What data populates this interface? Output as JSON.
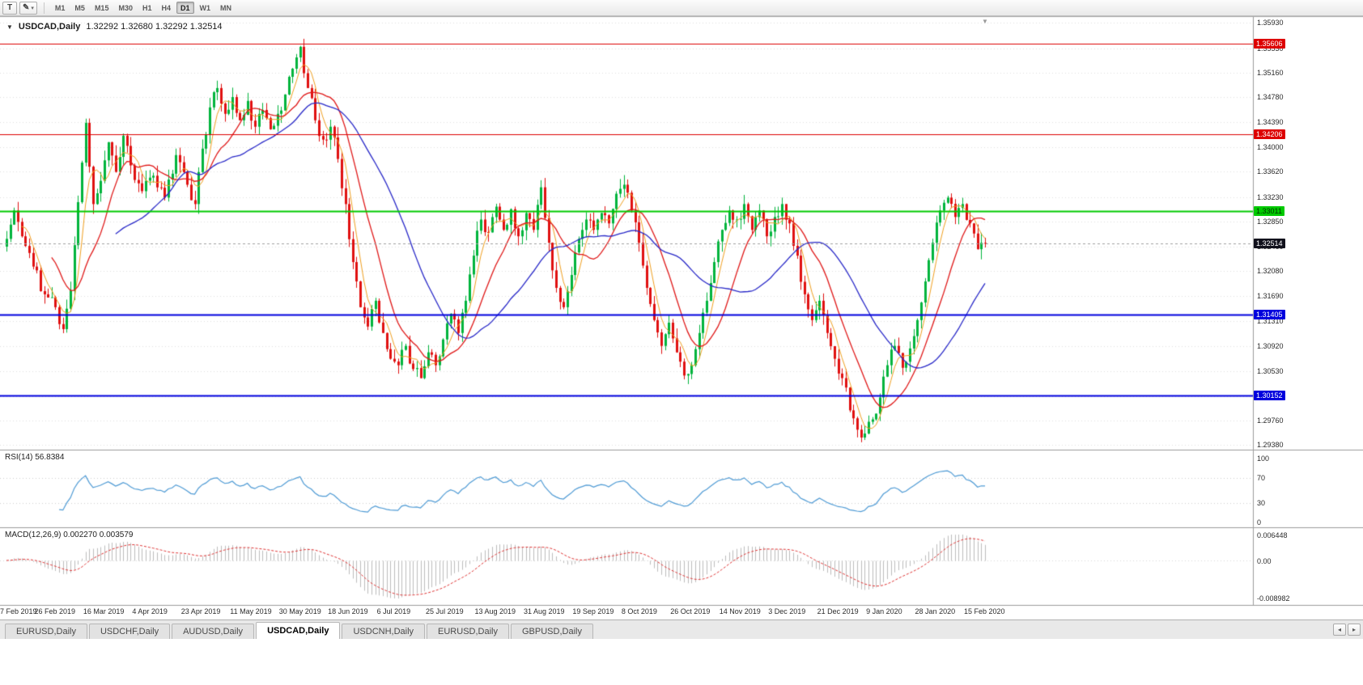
{
  "toolbar": {
    "t_button_label": "T",
    "pencil_icon": "✎",
    "dropdown_icon": "▾",
    "timeframes": [
      "M1",
      "M5",
      "M15",
      "M30",
      "H1",
      "H4",
      "D1",
      "W1",
      "MN"
    ],
    "active_timeframe": "D1"
  },
  "chart": {
    "collapse_icon": "▼",
    "symbol": "USDCAD,Daily",
    "ohlc": "1.32292 1.32680 1.32292 1.32514",
    "shift_marker_icon": "▼"
  },
  "price_axis": {
    "ticks": [
      "1.35930",
      "1.35530",
      "1.35160",
      "1.34780",
      "1.34390",
      "1.34000",
      "1.33620",
      "1.33230",
      "1.32850",
      "1.32460",
      "1.32080",
      "1.31690",
      "1.31310",
      "1.30920",
      "1.30530",
      "1.30140",
      "1.29760",
      "1.29380"
    ]
  },
  "date_axis": {
    "labels": [
      "7 Feb 2019",
      "26 Feb 2019",
      "16 Mar 2019",
      "4 Apr 2019",
      "23 Apr 2019",
      "11 May 2019",
      "30 May 2019",
      "18 Jun 2019",
      "6 Jul 2019",
      "25 Jul 2019",
      "13 Aug 2019",
      "31 Aug 2019",
      "19 Sep 2019",
      "8 Oct 2019",
      "26 Oct 2019",
      "14 Nov 2019",
      "3 Dec 2019",
      "21 Dec 2019",
      "9 Jan 2020",
      "28 Jan 2020",
      "15 Feb 2020"
    ]
  },
  "rsi_panel": {
    "label": "RSI(14) 56.8384",
    "value": 56.8384,
    "axis_labels": [
      "100",
      "70",
      "30",
      "0"
    ],
    "axis_values": [
      100,
      70,
      30,
      0
    ],
    "levels": [
      70,
      30
    ],
    "line_color": "#4f9bd5"
  },
  "macd_panel": {
    "label": "MACD(12,26,9) 0.002270 0.003579",
    "current_values": [
      0.00227,
      0.003579
    ],
    "axis_top": "0.006448",
    "axis_zero": "0.00",
    "axis_bottom": "-0.008982",
    "histogram_color": "#bdbdbd",
    "signal_color": "#e03434"
  },
  "tabbar": {
    "tabs": [
      "EURUSD,Daily",
      "USDCHF,Daily",
      "AUDUSD,Daily",
      "USDCAD,Daily",
      "USDCNH,Daily",
      "EURUSD,Daily",
      "GBPUSD,Daily"
    ],
    "active_index": 3,
    "scroll_left_icon": "◂",
    "scroll_right_icon": "▸"
  },
  "chart_data": {
    "type": "candlestick",
    "symbol": "USDCAD",
    "timeframe": "Daily",
    "last_values": {
      "open": 1.32292,
      "high": 1.3268,
      "low": 1.32292,
      "close": 1.32514
    },
    "ylim": [
      1.2931,
      1.3601
    ],
    "num_candles": 261,
    "label_step": 13,
    "up_color": "#00b43c",
    "down_color": "#e01010",
    "noise_amplitude": 0.0011,
    "wick_amplitude": 0.0016,
    "close_anchors": [
      [
        0,
        1.3258
      ],
      [
        2,
        1.3302
      ],
      [
        4,
        1.3262
      ],
      [
        7,
        1.3215
      ],
      [
        10,
        1.3172
      ],
      [
        13,
        1.3152
      ],
      [
        15,
        1.3118
      ],
      [
        17,
        1.3178
      ],
      [
        19,
        1.3315
      ],
      [
        21,
        1.3438
      ],
      [
        23,
        1.3312
      ],
      [
        25,
        1.3348
      ],
      [
        27,
        1.3408
      ],
      [
        29,
        1.3362
      ],
      [
        31,
        1.3418
      ],
      [
        33,
        1.3372
      ],
      [
        36,
        1.3332
      ],
      [
        39,
        1.3356
      ],
      [
        42,
        1.3322
      ],
      [
        45,
        1.3388
      ],
      [
        48,
        1.3342
      ],
      [
        50,
        1.3312
      ],
      [
        52,
        1.3398
      ],
      [
        54,
        1.3462
      ],
      [
        56,
        1.3492
      ],
      [
        58,
        1.3452
      ],
      [
        60,
        1.3478
      ],
      [
        62,
        1.3442
      ],
      [
        64,
        1.3472
      ],
      [
        66,
        1.3432
      ],
      [
        68,
        1.3458
      ],
      [
        70,
        1.3428
      ],
      [
        72,
        1.3452
      ],
      [
        74,
        1.3482
      ],
      [
        76,
        1.3522
      ],
      [
        78,
        1.3556
      ],
      [
        80,
        1.3492
      ],
      [
        82,
        1.3442
      ],
      [
        84,
        1.3412
      ],
      [
        86,
        1.3432
      ],
      [
        88,
        1.3382
      ],
      [
        90,
        1.3312
      ],
      [
        92,
        1.3222
      ],
      [
        94,
        1.3152
      ],
      [
        96,
        1.3122
      ],
      [
        98,
        1.3162
      ],
      [
        100,
        1.3112
      ],
      [
        102,
        1.3072
      ],
      [
        104,
        1.3062
      ],
      [
        106,
        1.3092
      ],
      [
        108,
        1.3056
      ],
      [
        110,
        1.3042
      ],
      [
        112,
        1.3082
      ],
      [
        114,
        1.3062
      ],
      [
        116,
        1.3102
      ],
      [
        118,
        1.3142
      ],
      [
        120,
        1.3112
      ],
      [
        122,
        1.3162
      ],
      [
        124,
        1.3232
      ],
      [
        126,
        1.3288
      ],
      [
        128,
        1.3268
      ],
      [
        130,
        1.3308
      ],
      [
        132,
        1.3272
      ],
      [
        134,
        1.3304
      ],
      [
        136,
        1.3262
      ],
      [
        138,
        1.3298
      ],
      [
        140,
        1.3272
      ],
      [
        142,
        1.3338
      ],
      [
        144,
        1.3252
      ],
      [
        146,
        1.3182
      ],
      [
        148,
        1.3152
      ],
      [
        150,
        1.3202
      ],
      [
        152,
        1.3258
      ],
      [
        154,
        1.3288
      ],
      [
        156,
        1.3272
      ],
      [
        158,
        1.3298
      ],
      [
        160,
        1.3282
      ],
      [
        162,
        1.3328
      ],
      [
        164,
        1.3342
      ],
      [
        166,
        1.3302
      ],
      [
        168,
        1.3252
      ],
      [
        170,
        1.3182
      ],
      [
        172,
        1.3132
      ],
      [
        174,
        1.3092
      ],
      [
        176,
        1.3128
      ],
      [
        178,
        1.3082
      ],
      [
        180,
        1.3046
      ],
      [
        182,
        1.3062
      ],
      [
        184,
        1.3112
      ],
      [
        186,
        1.3162
      ],
      [
        188,
        1.3222
      ],
      [
        190,
        1.3272
      ],
      [
        192,
        1.3302
      ],
      [
        194,
        1.3288
      ],
      [
        196,
        1.3312
      ],
      [
        198,
        1.3272
      ],
      [
        200,
        1.3302
      ],
      [
        202,
        1.3262
      ],
      [
        204,
        1.3292
      ],
      [
        206,
        1.3312
      ],
      [
        208,
        1.3282
      ],
      [
        210,
        1.3232
      ],
      [
        212,
        1.3172
      ],
      [
        214,
        1.3132
      ],
      [
        216,
        1.3162
      ],
      [
        218,
        1.3112
      ],
      [
        220,
        1.3072
      ],
      [
        222,
        1.3042
      ],
      [
        224,
        1.2992
      ],
      [
        226,
        1.2962
      ],
      [
        228,
        1.2956
      ],
      [
        230,
        1.2978
      ],
      [
        232,
        1.3012
      ],
      [
        234,
        1.3062
      ],
      [
        236,
        1.3092
      ],
      [
        238,
        1.3058
      ],
      [
        240,
        1.3088
      ],
      [
        242,
        1.3132
      ],
      [
        244,
        1.3192
      ],
      [
        246,
        1.3252
      ],
      [
        248,
        1.3302
      ],
      [
        250,
        1.3322
      ],
      [
        252,
        1.3292
      ],
      [
        254,
        1.3312
      ],
      [
        256,
        1.3282
      ],
      [
        258,
        1.3242
      ],
      [
        260,
        1.32514
      ]
    ],
    "moving_averages": [
      {
        "period": 5,
        "color": "#f0a020",
        "width": 1
      },
      {
        "period": 13,
        "color": "#e01818",
        "width": 1.3
      },
      {
        "period": 30,
        "color": "#2828c8",
        "width": 1.3
      }
    ],
    "horizontal_lines": [
      {
        "price": 1.35606,
        "label": "1.35606",
        "color": "#dd0000",
        "width": 1,
        "text_color": "#ffffff"
      },
      {
        "price": 1.34206,
        "label": "1.34206",
        "color": "#dd0000",
        "width": 1,
        "text_color": "#ffffff"
      },
      {
        "price": 1.33011,
        "label": "1.33011",
        "color": "#00ca00",
        "width": 2,
        "text_color": "#003300"
      },
      {
        "price": 1.31405,
        "label": "1.31405",
        "color": "#0000dd",
        "width": 2,
        "text_color": "#ffffff"
      },
      {
        "price": 1.30152,
        "label": "1.30152",
        "color": "#0000dd",
        "width": 2,
        "text_color": "#ffffff"
      }
    ],
    "bid_line": {
      "price": 1.32514,
      "label": "1.32514",
      "tag_bg": "#11111c",
      "tag_text": "#ffffff"
    },
    "rsi": {
      "period": 14,
      "current": 56.8384
    },
    "macd": {
      "fast": 12,
      "slow": 26,
      "signal": 9,
      "current_macd": 0.00227,
      "current_signal": 0.003579
    }
  }
}
